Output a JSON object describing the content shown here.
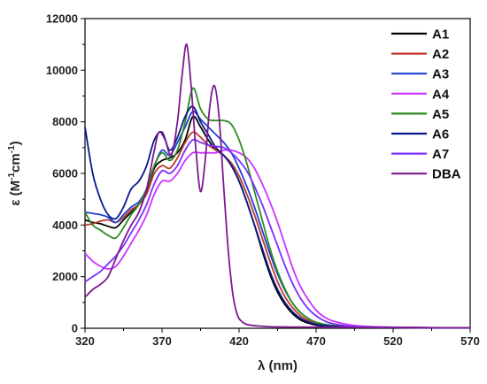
{
  "chart_data": {
    "type": "line",
    "title": "",
    "xlabel": "λ (nm)",
    "ylabel_main": "ε (M",
    "ylabel_sup1": "-1",
    "ylabel_mid": "cm",
    "ylabel_sup2": "-1",
    "ylabel_end": ")",
    "xlim": [
      320,
      570
    ],
    "ylim": [
      0,
      12000
    ],
    "xticks": [
      320,
      370,
      420,
      470,
      520,
      570
    ],
    "yticks": [
      0,
      2000,
      4000,
      6000,
      8000,
      10000,
      12000
    ],
    "legend_position": "top-right",
    "series": [
      {
        "name": "A1",
        "color": "#000000",
        "x": [
          320,
          325,
          330,
          335,
          340,
          345,
          350,
          355,
          360,
          365,
          370,
          375,
          380,
          385,
          390,
          395,
          400,
          405,
          410,
          415,
          420,
          425,
          430,
          435,
          440,
          445,
          450,
          455,
          460,
          465,
          470,
          480,
          500,
          520,
          545,
          570
        ],
        "y": [
          4200,
          4100,
          4050,
          3950,
          3900,
          4200,
          4500,
          4800,
          5300,
          6200,
          6500,
          6600,
          6800,
          7300,
          8200,
          7800,
          7300,
          6900,
          6700,
          6300,
          5700,
          4900,
          4000,
          3000,
          2100,
          1400,
          900,
          550,
          320,
          200,
          120,
          70,
          40,
          30,
          20,
          15
        ]
      },
      {
        "name": "A2",
        "color": "#c0392b",
        "x": [
          320,
          325,
          330,
          335,
          340,
          345,
          350,
          355,
          360,
          365,
          370,
          375,
          380,
          385,
          390,
          395,
          400,
          405,
          410,
          415,
          420,
          425,
          430,
          435,
          440,
          445,
          450,
          455,
          460,
          465,
          470,
          480,
          500,
          520,
          545,
          570
        ],
        "y": [
          4000,
          4050,
          4150,
          4200,
          4100,
          4300,
          4600,
          4800,
          5200,
          6000,
          6300,
          6200,
          6600,
          7200,
          7600,
          7400,
          7100,
          6900,
          6700,
          6400,
          5900,
          5200,
          4400,
          3500,
          2600,
          1800,
          1200,
          780,
          480,
          300,
          180,
          90,
          40,
          30,
          20,
          15
        ]
      },
      {
        "name": "A3",
        "color": "#1f3fd6",
        "x": [
          320,
          325,
          330,
          335,
          340,
          345,
          350,
          355,
          360,
          365,
          370,
          375,
          380,
          385,
          390,
          395,
          400,
          405,
          410,
          415,
          420,
          425,
          430,
          435,
          440,
          445,
          450,
          455,
          460,
          465,
          470,
          480,
          500,
          520,
          545,
          570
        ],
        "y": [
          4500,
          4450,
          4400,
          4300,
          4100,
          4400,
          4700,
          4900,
          5400,
          6300,
          6900,
          6700,
          7200,
          7800,
          8400,
          8100,
          7800,
          7500,
          7200,
          6800,
          6200,
          5500,
          4700,
          3800,
          2900,
          2100,
          1450,
          950,
          600,
          380,
          230,
          110,
          50,
          30,
          20,
          15
        ]
      },
      {
        "name": "A4",
        "color": "#cc33ff",
        "x": [
          320,
          325,
          330,
          335,
          340,
          345,
          350,
          355,
          360,
          365,
          370,
          375,
          380,
          385,
          390,
          395,
          400,
          405,
          410,
          415,
          420,
          425,
          430,
          435,
          440,
          445,
          450,
          455,
          460,
          465,
          470,
          475,
          480,
          490,
          500,
          520,
          545,
          570
        ],
        "y": [
          2900,
          2600,
          2400,
          2300,
          2400,
          2800,
          3300,
          3800,
          4400,
          5200,
          5700,
          5700,
          6000,
          6500,
          6800,
          6800,
          6800,
          6800,
          6900,
          6900,
          6800,
          6600,
          6200,
          5600,
          4900,
          4100,
          3200,
          2300,
          1600,
          1100,
          700,
          450,
          300,
          150,
          80,
          40,
          20,
          15
        ]
      },
      {
        "name": "A5",
        "color": "#2e8b22",
        "x": [
          320,
          325,
          330,
          335,
          340,
          345,
          350,
          355,
          360,
          365,
          370,
          375,
          380,
          385,
          390,
          395,
          400,
          405,
          410,
          415,
          420,
          425,
          430,
          435,
          440,
          445,
          450,
          455,
          460,
          465,
          470,
          480,
          500,
          520,
          545,
          570
        ],
        "y": [
          4500,
          4000,
          3800,
          3600,
          3500,
          3900,
          4400,
          4800,
          5400,
          6300,
          6800,
          6500,
          6900,
          8000,
          9300,
          8500,
          8100,
          8050,
          8050,
          7900,
          7300,
          6400,
          5300,
          4200,
          3100,
          2200,
          1500,
          950,
          600,
          380,
          230,
          110,
          50,
          30,
          20,
          15
        ]
      },
      {
        "name": "A6",
        "color": "#0a1a8c",
        "x": [
          320,
          325,
          330,
          335,
          340,
          345,
          350,
          355,
          360,
          365,
          370,
          375,
          380,
          385,
          390,
          395,
          400,
          405,
          410,
          415,
          420,
          425,
          430,
          435,
          440,
          445,
          450,
          455,
          460,
          465,
          470,
          480,
          500,
          520,
          545,
          570
        ],
        "y": [
          7800,
          6000,
          5000,
          4400,
          4250,
          4700,
          5400,
          5700,
          6300,
          7300,
          7600,
          6900,
          7400,
          8200,
          8600,
          8000,
          7500,
          7000,
          6700,
          6300,
          5700,
          4900,
          4000,
          3100,
          2200,
          1500,
          980,
          620,
          380,
          240,
          150,
          80,
          40,
          30,
          20,
          15
        ]
      },
      {
        "name": "A7",
        "color": "#7b2fff",
        "x": [
          320,
          325,
          330,
          335,
          340,
          345,
          350,
          355,
          360,
          365,
          370,
          375,
          380,
          385,
          390,
          395,
          400,
          405,
          410,
          415,
          420,
          425,
          430,
          435,
          440,
          445,
          450,
          455,
          460,
          465,
          470,
          475,
          480,
          490,
          500,
          520,
          545,
          570
        ],
        "y": [
          1800,
          2000,
          2200,
          2500,
          2800,
          3200,
          3700,
          4200,
          4800,
          5600,
          6100,
          6000,
          6300,
          6900,
          7300,
          7200,
          7100,
          7050,
          7000,
          6800,
          6500,
          6100,
          5500,
          4800,
          4000,
          3200,
          2400,
          1700,
          1150,
          750,
          480,
          300,
          190,
          90,
          50,
          30,
          20,
          15
        ]
      },
      {
        "name": "DBA",
        "color": "#7d1a8f",
        "x": [
          320,
          325,
          330,
          335,
          340,
          345,
          350,
          355,
          360,
          365,
          368,
          372,
          376,
          380,
          383,
          386,
          389,
          392,
          395,
          398,
          401,
          404,
          407,
          410,
          413,
          416,
          419,
          422,
          425,
          430,
          435,
          440,
          450,
          470,
          520,
          570
        ],
        "y": [
          1200,
          1500,
          1700,
          2000,
          2700,
          3400,
          4000,
          4500,
          5400,
          6900,
          7600,
          7300,
          6700,
          8000,
          9800,
          11000,
          9300,
          6900,
          5300,
          6500,
          8600,
          9400,
          8200,
          5500,
          3000,
          1300,
          500,
          250,
          150,
          100,
          80,
          60,
          50,
          40,
          30,
          20
        ]
      }
    ]
  }
}
